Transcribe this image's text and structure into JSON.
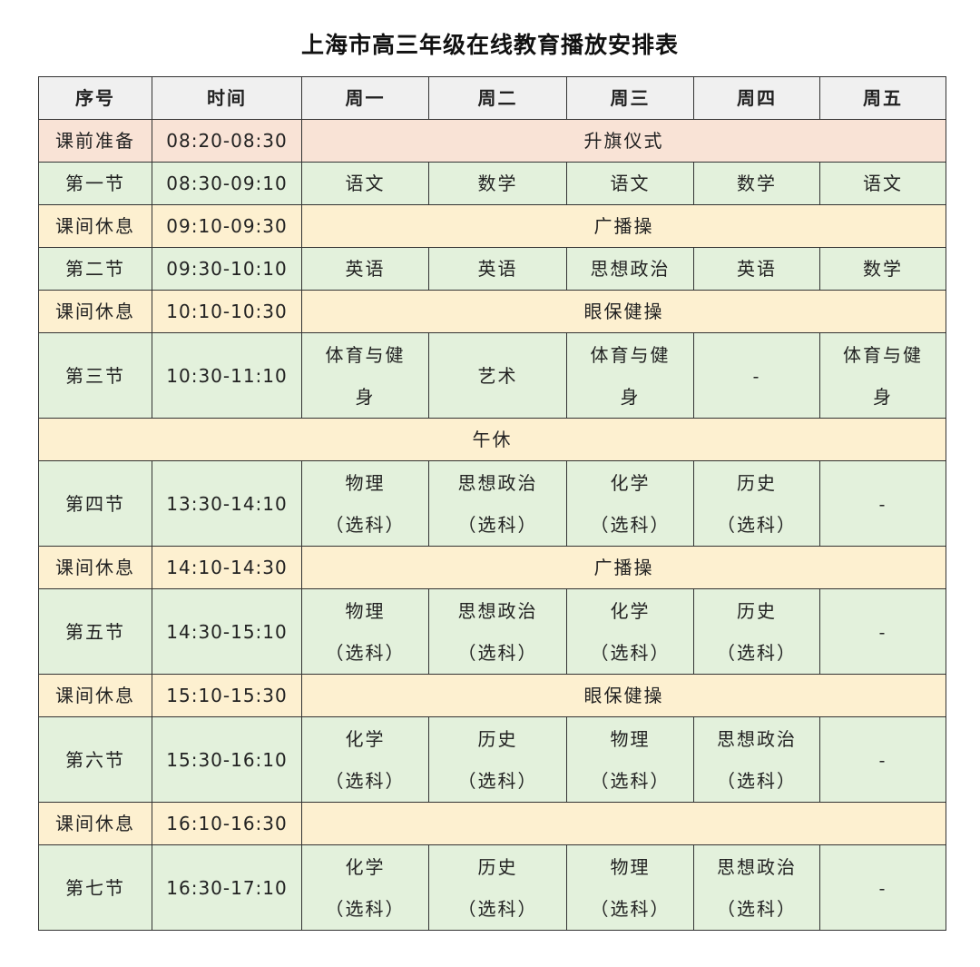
{
  "title": "上海市高三年级在线教育播放安排表",
  "colors": {
    "header": "#f0f0f0",
    "ceremony": "#f9e3d6",
    "class": "#e3f1dc",
    "break": "#fdf0d0"
  },
  "headers": [
    "序号",
    "时间",
    "周一",
    "周二",
    "周三",
    "周四",
    "周五"
  ],
  "rows": [
    {
      "type": "pink",
      "label": "课前准备",
      "time": "08:20-08:30",
      "span": "升旗仪式"
    },
    {
      "type": "green",
      "label": "第一节",
      "time": "08:30-09:10",
      "cells": [
        "语文",
        "数学",
        "语文",
        "数学",
        "语文"
      ]
    },
    {
      "type": "yellow",
      "label": "课间休息",
      "time": "09:10-09:30",
      "span": "广播操"
    },
    {
      "type": "green",
      "label": "第二节",
      "time": "09:30-10:10",
      "cells": [
        "英语",
        "英语",
        "思想政治",
        "英语",
        "数学"
      ]
    },
    {
      "type": "yellow",
      "label": "课间休息",
      "time": "10:10-10:30",
      "span": "眼保健操"
    },
    {
      "type": "green",
      "double": true,
      "label": "第三节",
      "time": "10:30-11:10",
      "cells": [
        "体育与健\n身",
        "艺术",
        "体育与健\n身",
        "-",
        "体育与健\n身"
      ]
    },
    {
      "type": "yellow",
      "full": "午休"
    },
    {
      "type": "green",
      "double": true,
      "label": "第四节",
      "time": "13:30-14:10",
      "cells": [
        "物理\n（选科）",
        "思想政治\n（选科）",
        "化学\n（选科）",
        "历史\n（选科）",
        "-"
      ]
    },
    {
      "type": "yellow",
      "label": "课间休息",
      "time": "14:10-14:30",
      "span": "广播操"
    },
    {
      "type": "green",
      "double": true,
      "label": "第五节",
      "time": "14:30-15:10",
      "cells": [
        "物理\n（选科）",
        "思想政治\n（选科）",
        "化学\n（选科）",
        "历史\n（选科）",
        "-"
      ]
    },
    {
      "type": "yellow",
      "label": "课间休息",
      "time": "15:10-15:30",
      "span": "眼保健操"
    },
    {
      "type": "green",
      "double": true,
      "label": "第六节",
      "time": "15:30-16:10",
      "cells": [
        "化学\n（选科）",
        "历史\n（选科）",
        "物理\n（选科）",
        "思想政治\n（选科）",
        "-"
      ]
    },
    {
      "type": "yellow",
      "label": "课间休息",
      "time": "16:10-16:30",
      "span": ""
    },
    {
      "type": "green",
      "double": true,
      "label": "第七节",
      "time": "16:30-17:10",
      "cells": [
        "化学\n（选科）",
        "历史\n（选科）",
        "物理\n（选科）",
        "思想政治\n（选科）",
        "-"
      ]
    }
  ]
}
